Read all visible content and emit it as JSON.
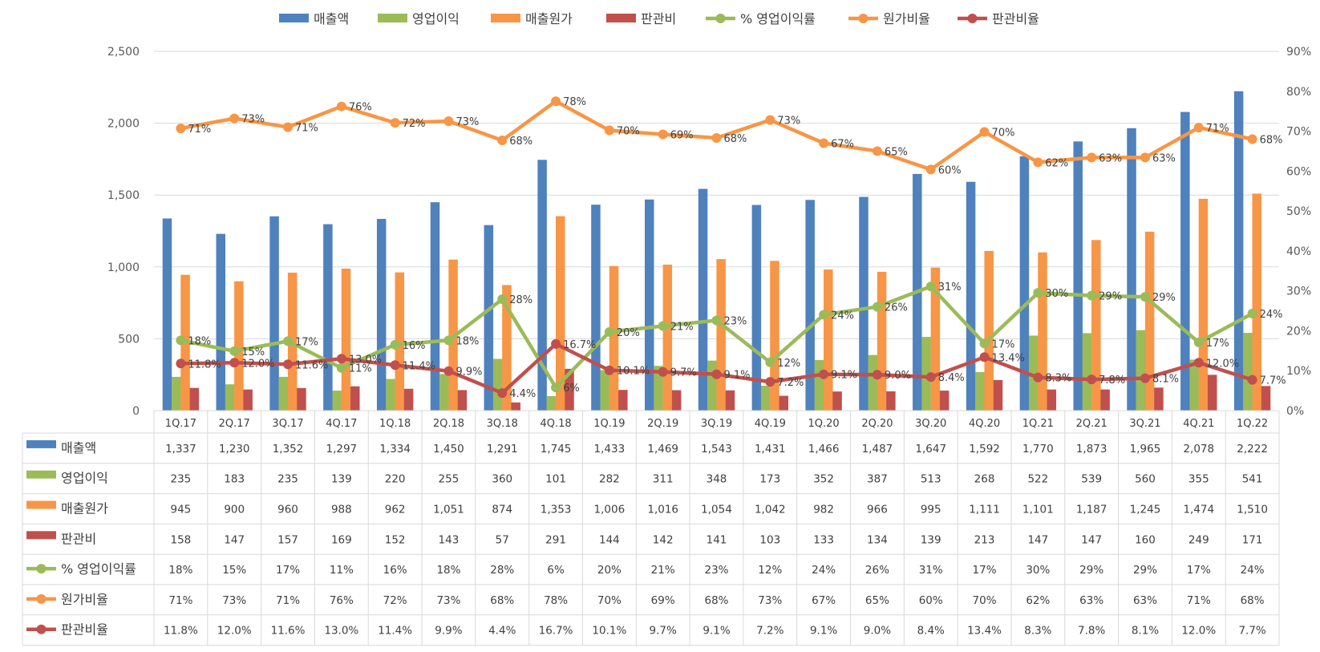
{
  "chart_data": {
    "type": "bar",
    "title": "",
    "xlabel": "",
    "ylabel": "",
    "ylim": [
      0,
      2500
    ],
    "y2lim": [
      0,
      0.9
    ],
    "y_ticks": [
      "0",
      "500",
      "1,000",
      "1,500",
      "2,000",
      "2,500"
    ],
    "y2_ticks": [
      "0%",
      "10%",
      "20%",
      "30%",
      "40%",
      "50%",
      "60%",
      "70%",
      "80%",
      "90%"
    ],
    "legend_position": "top",
    "data_table": true,
    "categories": [
      "1Q.17",
      "2Q.17",
      "3Q.17",
      "4Q.17",
      "1Q.18",
      "2Q.18",
      "3Q.18",
      "4Q.18",
      "1Q.19",
      "2Q.19",
      "3Q.19",
      "4Q.19",
      "1Q.20",
      "2Q.20",
      "3Q.20",
      "4Q.20",
      "1Q.21",
      "2Q.21",
      "3Q.21",
      "4Q.21",
      "1Q.22"
    ],
    "series": [
      {
        "name": "매출액",
        "kind": "bar",
        "axis": "left",
        "color": "#4f81bd",
        "values": [
          1337,
          1230,
          1352,
          1297,
          1334,
          1450,
          1291,
          1745,
          1433,
          1469,
          1543,
          1431,
          1466,
          1487,
          1647,
          1592,
          1770,
          1873,
          1965,
          2078,
          2222
        ],
        "labels": [
          "1,337",
          "1,230",
          "1,352",
          "1,297",
          "1,334",
          "1,450",
          "1,291",
          "1,745",
          "1,433",
          "1,469",
          "1,543",
          "1,431",
          "1,466",
          "1,487",
          "1,647",
          "1,592",
          "1,770",
          "1,873",
          "1,965",
          "2,078",
          "2,222"
        ]
      },
      {
        "name": "영업이익",
        "kind": "bar",
        "axis": "left",
        "color": "#9bbb59",
        "values": [
          235,
          183,
          235,
          139,
          220,
          255,
          360,
          101,
          282,
          311,
          348,
          173,
          352,
          387,
          513,
          268,
          522,
          539,
          560,
          355,
          541
        ],
        "labels": [
          "235",
          "183",
          "235",
          "139",
          "220",
          "255",
          "360",
          "101",
          "282",
          "311",
          "348",
          "173",
          "352",
          "387",
          "513",
          "268",
          "522",
          "539",
          "560",
          "355",
          "541"
        ]
      },
      {
        "name": "매출원가",
        "kind": "bar",
        "axis": "left",
        "color": "#f79646",
        "values": [
          945,
          900,
          960,
          988,
          962,
          1051,
          874,
          1353,
          1006,
          1016,
          1054,
          1042,
          982,
          966,
          995,
          1111,
          1101,
          1187,
          1245,
          1474,
          1510
        ],
        "labels": [
          "945",
          "900",
          "960",
          "988",
          "962",
          "1,051",
          "874",
          "1,353",
          "1,006",
          "1,016",
          "1,054",
          "1,042",
          "982",
          "966",
          "995",
          "1,111",
          "1,101",
          "1,187",
          "1,245",
          "1,474",
          "1,510"
        ]
      },
      {
        "name": "판관비",
        "kind": "bar",
        "axis": "left",
        "color": "#c0504d",
        "values": [
          158,
          147,
          157,
          169,
          152,
          143,
          57,
          291,
          144,
          142,
          141,
          103,
          133,
          134,
          139,
          213,
          147,
          147,
          160,
          249,
          171
        ],
        "labels": [
          "158",
          "147",
          "157",
          "169",
          "152",
          "143",
          "57",
          "291",
          "144",
          "142",
          "141",
          "103",
          "133",
          "134",
          "139",
          "213",
          "147",
          "147",
          "160",
          "249",
          "171"
        ]
      },
      {
        "name": "% 영업이익률",
        "kind": "line",
        "axis": "right",
        "color": "#9bbb59",
        "values": [
          0.176,
          0.149,
          0.174,
          0.107,
          0.165,
          0.176,
          0.279,
          0.058,
          0.197,
          0.212,
          0.226,
          0.121,
          0.24,
          0.26,
          0.311,
          0.168,
          0.295,
          0.288,
          0.285,
          0.171,
          0.243
        ],
        "labels": [
          "18%",
          "15%",
          "17%",
          "11%",
          "16%",
          "18%",
          "28%",
          "6%",
          "20%",
          "21%",
          "23%",
          "12%",
          "24%",
          "26%",
          "31%",
          "17%",
          "30%",
          "29%",
          "29%",
          "17%",
          "24%"
        ]
      },
      {
        "name": "원가비율",
        "kind": "line",
        "axis": "right",
        "color": "#f79646",
        "values": [
          0.707,
          0.732,
          0.71,
          0.762,
          0.721,
          0.725,
          0.677,
          0.775,
          0.702,
          0.692,
          0.683,
          0.728,
          0.67,
          0.65,
          0.604,
          0.698,
          0.622,
          0.634,
          0.634,
          0.709,
          0.68
        ],
        "labels": [
          "71%",
          "73%",
          "71%",
          "76%",
          "72%",
          "73%",
          "68%",
          "78%",
          "70%",
          "69%",
          "68%",
          "73%",
          "67%",
          "65%",
          "60%",
          "70%",
          "62%",
          "63%",
          "63%",
          "71%",
          "68%"
        ]
      },
      {
        "name": "판관비율",
        "kind": "line",
        "axis": "right",
        "color": "#c0504d",
        "values": [
          0.118,
          0.12,
          0.116,
          0.13,
          0.114,
          0.099,
          0.044,
          0.167,
          0.101,
          0.097,
          0.091,
          0.072,
          0.091,
          0.09,
          0.084,
          0.134,
          0.083,
          0.078,
          0.081,
          0.12,
          0.077
        ],
        "labels": [
          "11.8%",
          "12.0%",
          "11.6%",
          "13.0%",
          "11.4%",
          "9.9%",
          "4.4%",
          "16.7%",
          "10.1%",
          "9.7%",
          "9.1%",
          "7.2%",
          "9.1%",
          "9.0%",
          "8.4%",
          "13.4%",
          "8.3%",
          "7.8%",
          "8.1%",
          "12.0%",
          "7.7%"
        ]
      }
    ]
  }
}
